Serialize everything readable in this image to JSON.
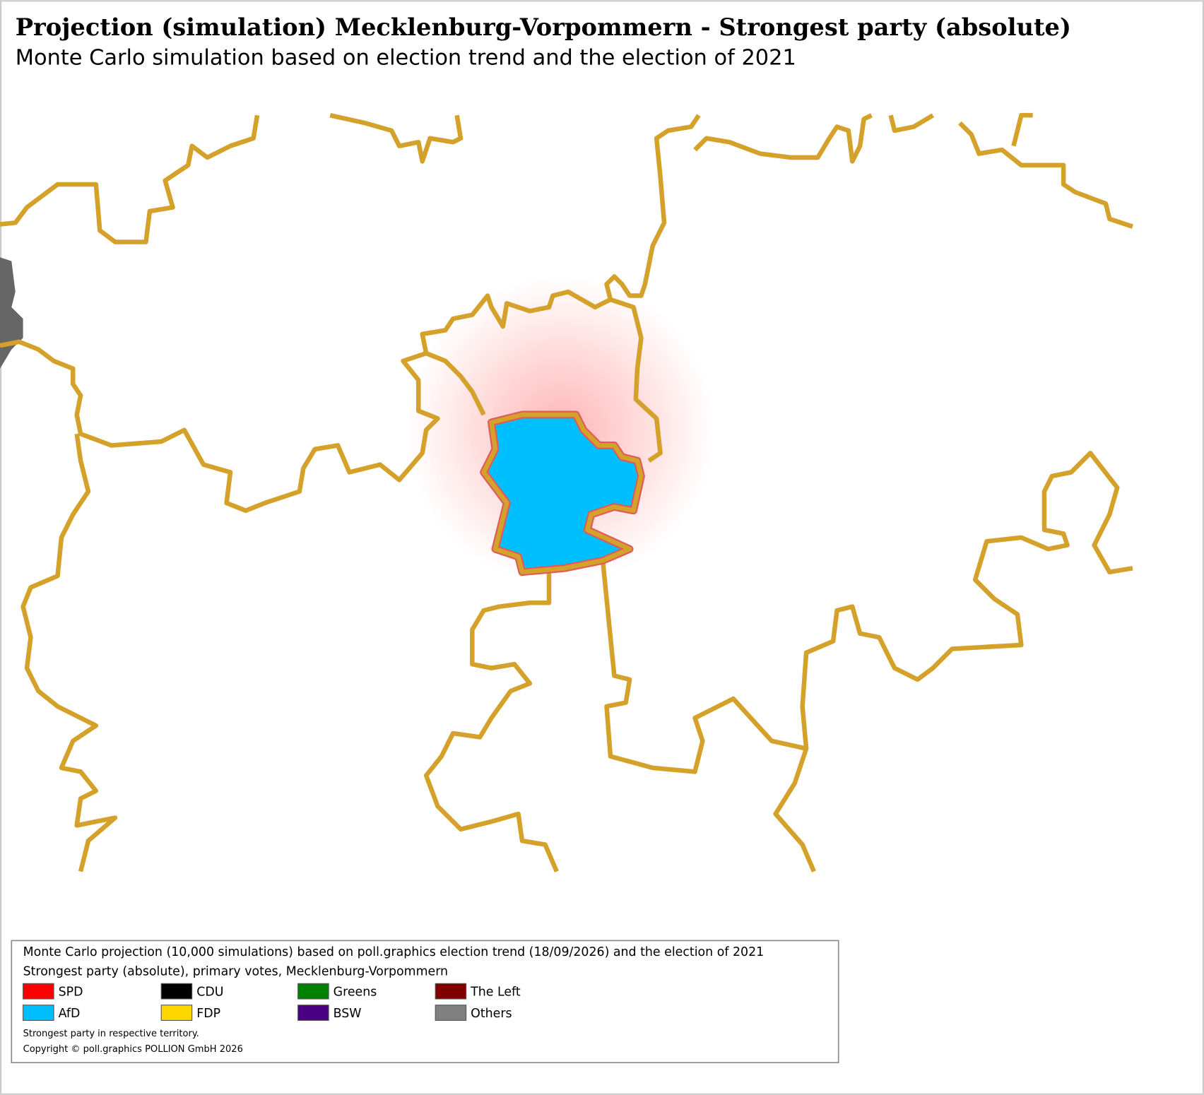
{
  "header": {
    "title": "Projection (simulation) Mecklenburg-Vorpommern - Strongest party (absolute)",
    "subtitle": "Monte Carlo simulation based on election trend and the election of 2021"
  },
  "map": {
    "highlighted_party": 4
  },
  "legend": {
    "description": "Monte Carlo projection (10,000 simulations) based on poll.graphics election trend (18/09/2026) and the election of 2021",
    "subtitle": "Strongest party (absolute), primary votes, Mecklenburg-Vorpommern",
    "parties": [
      {
        "name": "SPD",
        "color": "#ff0000"
      },
      {
        "name": "CDU",
        "color": "#000000"
      },
      {
        "name": "Greens",
        "color": "#008000"
      },
      {
        "name": "The Left",
        "color": "#800000"
      },
      {
        "name": "AfD",
        "color": "#00bfff"
      },
      {
        "name": "FDP",
        "color": "#ffd700"
      },
      {
        "name": "BSW",
        "color": "#4b0082"
      },
      {
        "name": "Others",
        "color": "#808080"
      }
    ],
    "note": "Strongest party in respective territory.",
    "copyright": "Copyright © poll.graphics POLLION GmbH 2026"
  }
}
